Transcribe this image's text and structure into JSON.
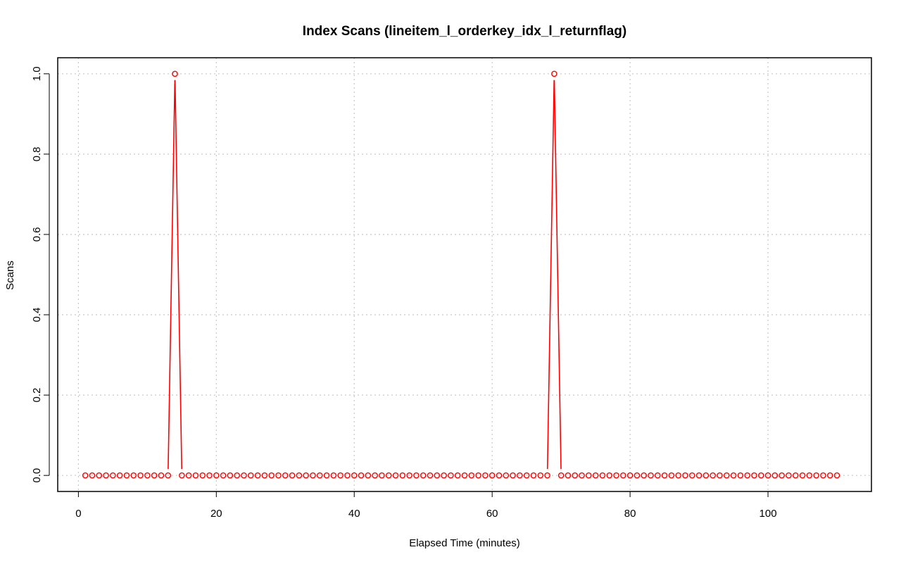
{
  "chart_data": {
    "type": "line",
    "title": "Index Scans (lineitem_l_orderkey_idx_l_returnflag)",
    "xlabel": "Elapsed Time (minutes)",
    "ylabel": "Scans",
    "xlim": [
      -3,
      115
    ],
    "ylim": [
      -0.04,
      1.04
    ],
    "x_ticks": [
      0,
      20,
      40,
      60,
      80,
      100
    ],
    "y_ticks": [
      0.0,
      0.2,
      0.4,
      0.6,
      0.8,
      1.0
    ],
    "x_tick_labels": [
      "0",
      "20",
      "40",
      "60",
      "80",
      "100"
    ],
    "y_tick_labels": [
      "0.0",
      "0.2",
      "0.4",
      "0.6",
      "0.8",
      "1.0"
    ],
    "grid": true,
    "series": [
      {
        "color": "#ff0000",
        "marker": "open-circle",
        "x": [
          1,
          2,
          3,
          4,
          5,
          6,
          7,
          8,
          9,
          10,
          11,
          12,
          13,
          14,
          15,
          16,
          17,
          18,
          19,
          20,
          21,
          22,
          23,
          24,
          25,
          26,
          27,
          28,
          29,
          30,
          31,
          32,
          33,
          34,
          35,
          36,
          37,
          38,
          39,
          40,
          41,
          42,
          43,
          44,
          45,
          46,
          47,
          48,
          49,
          50,
          51,
          52,
          53,
          54,
          55,
          56,
          57,
          58,
          59,
          60,
          61,
          62,
          63,
          64,
          65,
          66,
          67,
          68,
          69,
          70,
          71,
          72,
          73,
          74,
          75,
          76,
          77,
          78,
          79,
          80,
          81,
          82,
          83,
          84,
          85,
          86,
          87,
          88,
          89,
          90,
          91,
          92,
          93,
          94,
          95,
          96,
          97,
          98,
          99,
          100,
          101,
          102,
          103,
          104,
          105,
          106,
          107,
          108,
          109,
          110
        ],
        "y": [
          0,
          0,
          0,
          0,
          0,
          0,
          0,
          0,
          0,
          0,
          0,
          0,
          0,
          1,
          0,
          0,
          0,
          0,
          0,
          0,
          0,
          0,
          0,
          0,
          0,
          0,
          0,
          0,
          0,
          0,
          0,
          0,
          0,
          0,
          0,
          0,
          0,
          0,
          0,
          0,
          0,
          0,
          0,
          0,
          0,
          0,
          0,
          0,
          0,
          0,
          0,
          0,
          0,
          0,
          0,
          0,
          0,
          0,
          0,
          0,
          0,
          0,
          0,
          0,
          0,
          0,
          0,
          0,
          1,
          0,
          0,
          0,
          0,
          0,
          0,
          0,
          0,
          0,
          0,
          0,
          0,
          0,
          0,
          0,
          0,
          0,
          0,
          0,
          0,
          0,
          0,
          0,
          0,
          0,
          0,
          0,
          0,
          0,
          0,
          0,
          0,
          0,
          0,
          0,
          0,
          0,
          0,
          0,
          0,
          0
        ]
      }
    ]
  }
}
